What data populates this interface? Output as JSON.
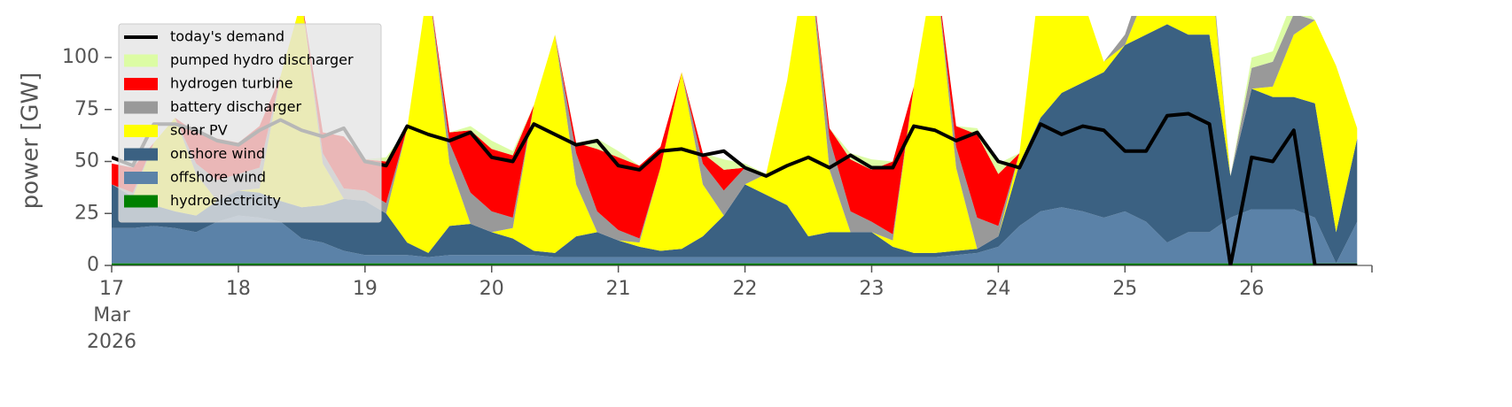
{
  "chart_data": {
    "type": "area",
    "ylabel": "power [GW]",
    "xlim": [
      17,
      26.95
    ],
    "xticks": [
      {
        "value": 17,
        "label": "17\nMar\n2026"
      },
      18,
      19,
      20,
      21,
      22,
      23,
      24,
      25,
      26
    ],
    "ylim": [
      0,
      120
    ],
    "yticks": [
      0,
      25,
      50,
      75,
      100
    ],
    "legend": "upper left",
    "x": [
      17,
      17.167,
      17.333,
      17.5,
      17.667,
      17.833,
      18,
      18.167,
      18.333,
      18.5,
      18.667,
      18.833,
      19,
      19.167,
      19.333,
      19.5,
      19.667,
      19.833,
      20,
      20.167,
      20.333,
      20.5,
      20.667,
      20.833,
      21,
      21.167,
      21.333,
      21.5,
      21.667,
      21.833,
      22,
      22.167,
      22.333,
      22.5,
      22.667,
      22.833,
      23,
      23.167,
      23.333,
      23.5,
      23.667,
      23.833,
      24,
      24.167,
      24.333,
      24.5,
      24.667,
      24.833,
      25,
      25.167,
      25.333,
      25.5,
      25.667,
      25.833,
      26,
      26.167,
      26.333,
      26.5,
      26.667,
      26.833
    ],
    "series": [
      {
        "name": "today's demand",
        "color": "#000000",
        "kind": "line",
        "values": [
          52,
          48,
          68,
          68,
          65,
          60,
          58,
          65,
          70,
          65,
          62,
          66,
          50,
          48,
          67,
          63,
          60,
          64,
          52,
          50,
          68,
          63,
          58,
          60,
          48,
          46,
          55,
          56,
          53,
          55,
          47,
          43,
          48,
          52,
          47,
          53,
          47,
          47,
          67,
          65,
          60,
          64,
          50,
          47,
          68,
          63,
          67,
          65,
          55,
          55,
          72,
          73,
          68,
          0,
          52,
          50,
          65,
          0,
          0,
          0
        ]
      },
      {
        "name": "pumped hydro discharger",
        "color": "#dcfca4",
        "kind": "area",
        "values": [
          0,
          0,
          0,
          0,
          0,
          0,
          0,
          0,
          0,
          0,
          0,
          0,
          0,
          2,
          0,
          0,
          0,
          2,
          4,
          2,
          0,
          0,
          0,
          5,
          3,
          0,
          0,
          0,
          0,
          5,
          2,
          0,
          0,
          0,
          0,
          3,
          5,
          0,
          0,
          0,
          0,
          3,
          5,
          0,
          0,
          0,
          0,
          0,
          0,
          0,
          0,
          0,
          0,
          0,
          5,
          5,
          8,
          0,
          0,
          0
        ]
      },
      {
        "name": "hydrogen turbine",
        "color": "#ff0000",
        "kind": "area",
        "values": [
          10,
          12,
          0,
          0,
          15,
          20,
          15,
          20,
          0,
          0,
          10,
          25,
          15,
          20,
          0,
          0,
          5,
          30,
          30,
          30,
          0,
          0,
          5,
          30,
          35,
          35,
          10,
          0,
          5,
          10,
          0,
          0,
          0,
          0,
          5,
          25,
          25,
          35,
          0,
          0,
          10,
          40,
          25,
          0,
          0,
          0,
          0,
          0,
          0,
          0,
          0,
          0,
          0,
          0,
          0,
          0,
          0,
          0,
          0,
          0
        ]
      },
      {
        "name": "battery discharger",
        "color": "#999999",
        "kind": "area",
        "values": [
          0,
          2,
          0,
          0,
          5,
          10,
          8,
          10,
          0,
          0,
          5,
          5,
          5,
          5,
          0,
          0,
          10,
          15,
          10,
          5,
          0,
          0,
          15,
          10,
          5,
          2,
          0,
          0,
          10,
          12,
          8,
          0,
          0,
          0,
          15,
          10,
          5,
          3,
          0,
          0,
          10,
          15,
          5,
          0,
          0,
          0,
          0,
          0,
          5,
          10,
          0,
          0,
          5,
          0,
          10,
          12,
          10,
          0,
          0,
          0
        ]
      },
      {
        "name": "solar PV",
        "color": "#ffff00",
        "kind": "area",
        "values": [
          0,
          0,
          30,
          45,
          20,
          0,
          0,
          2,
          60,
          100,
          20,
          0,
          0,
          0,
          55,
          130,
          30,
          0,
          0,
          5,
          70,
          105,
          25,
          0,
          0,
          2,
          40,
          85,
          25,
          0,
          0,
          10,
          60,
          140,
          30,
          0,
          0,
          3,
          80,
          140,
          40,
          0,
          0,
          5,
          70,
          120,
          40,
          5,
          0,
          20,
          50,
          80,
          40,
          0,
          0,
          5,
          30,
          40,
          80,
          5
        ]
      },
      {
        "name": "onshore wind",
        "color": "#3b6182",
        "kind": "area",
        "values": [
          21,
          15,
          10,
          8,
          8,
          10,
          12,
          12,
          10,
          15,
          18,
          25,
          26,
          20,
          6,
          2,
          14,
          15,
          11,
          8,
          2,
          2,
          10,
          12,
          8,
          5,
          3,
          4,
          10,
          20,
          35,
          30,
          25,
          10,
          12,
          12,
          12,
          5,
          2,
          2,
          2,
          2,
          5,
          30,
          45,
          55,
          62,
          70,
          80,
          90,
          105,
          95,
          95,
          20,
          58,
          54,
          54,
          55,
          15,
          40
        ]
      },
      {
        "name": "offshore wind",
        "color": "#5b82a8",
        "kind": "area",
        "values": [
          17,
          17,
          18,
          17,
          15,
          20,
          23,
          22,
          20,
          12,
          10,
          6,
          4,
          4,
          4,
          3,
          4,
          4,
          4,
          4,
          4,
          3,
          3,
          3,
          3,
          3,
          3,
          3,
          3,
          3,
          3,
          3,
          3,
          3,
          3,
          3,
          3,
          3,
          3,
          3,
          4,
          5,
          8,
          18,
          25,
          27,
          25,
          22,
          25,
          20,
          10,
          15,
          15,
          22,
          26,
          26,
          26,
          22,
          0,
          20
        ]
      },
      {
        "name": "hydroelectricity",
        "color": "#008000",
        "kind": "area",
        "values": [
          1,
          1,
          1,
          1,
          1,
          1,
          1,
          1,
          1,
          1,
          1,
          1,
          1,
          1,
          1,
          1,
          1,
          1,
          1,
          1,
          1,
          1,
          1,
          1,
          1,
          1,
          1,
          1,
          1,
          1,
          1,
          1,
          1,
          1,
          1,
          1,
          1,
          1,
          1,
          1,
          1,
          1,
          1,
          1,
          1,
          1,
          1,
          1,
          1,
          1,
          1,
          1,
          1,
          1,
          1,
          1,
          1,
          1,
          1,
          1
        ]
      }
    ]
  }
}
